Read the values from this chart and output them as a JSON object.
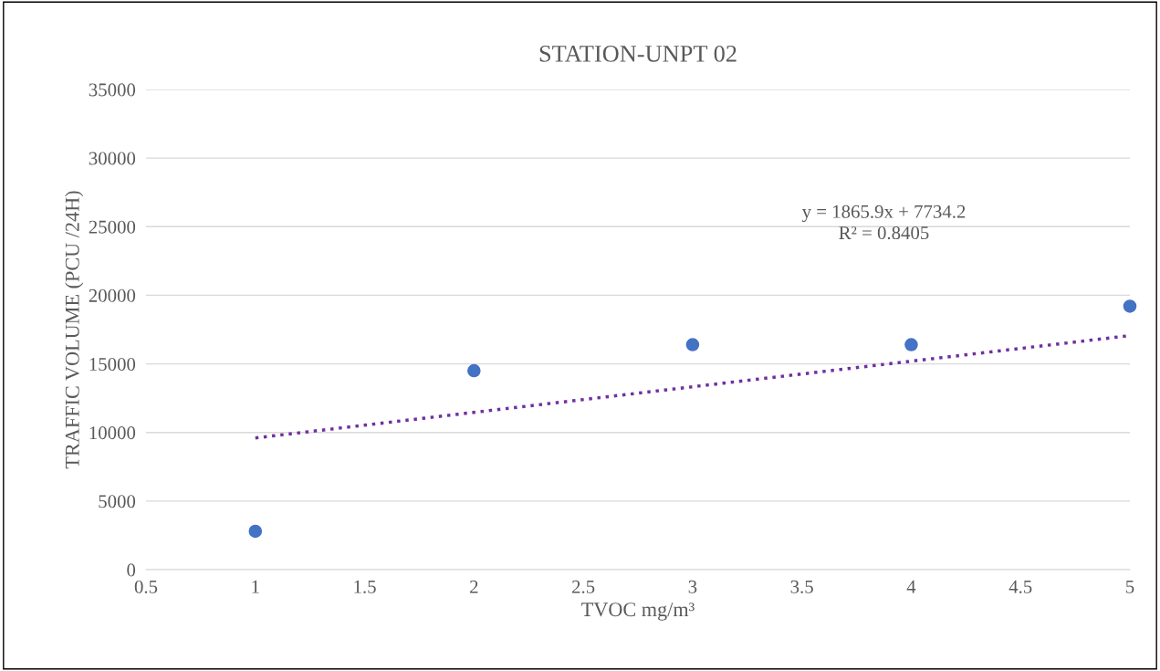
{
  "chart_data": {
    "type": "scatter",
    "title": "STATION-UNPT 02",
    "xlabel": "TVOC mg/m³",
    "ylabel": "TRAFFIC VOLUME (PCU /24H)",
    "x": [
      1,
      2,
      3,
      4,
      5
    ],
    "series": [
      {
        "color": "#4472c4",
        "values": [
          2800,
          14500,
          16400,
          16400,
          19200
        ],
        "marker": "circle"
      },
      {
        "type": "line",
        "color": "#7030a0",
        "x": [
          1,
          5
        ],
        "values": [
          9600,
          17060
        ],
        "line_style": "dotted",
        "marker": "none"
      }
    ],
    "annotations": [
      "y = 1865.9x + 7734.2\nR² = 0.8405"
    ],
    "xlim": [
      0.5,
      5
    ],
    "xticks": [
      0.5,
      1,
      1.5,
      2,
      2.5,
      3,
      3.5,
      4,
      4.5,
      5
    ],
    "ylim": [
      0,
      35000
    ],
    "yticks": [
      0,
      5000,
      10000,
      15000,
      20000,
      25000,
      30000,
      35000
    ],
    "grid": "y",
    "legend": false
  }
}
